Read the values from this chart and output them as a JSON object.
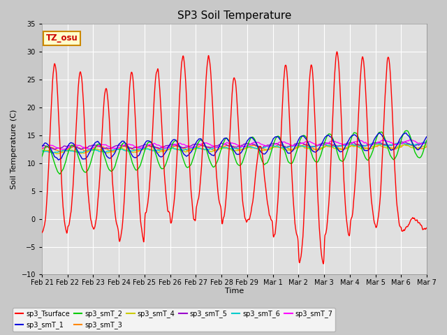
{
  "title": "SP3 Soil Temperature",
  "xlabel": "Time",
  "ylabel": "Soil Temperature (C)",
  "ylim": [
    -10,
    35
  ],
  "yticks": [
    -10,
    -5,
    0,
    5,
    10,
    15,
    20,
    25,
    30,
    35
  ],
  "fig_bg_color": "#c8c8c8",
  "plot_bg_color": "#e0e0e0",
  "tz_label": "TZ_osu",
  "legend_entries": [
    {
      "label": "sp3_Tsurface",
      "color": "#ff0000"
    },
    {
      "label": "sp3_smT_1",
      "color": "#0000dd"
    },
    {
      "label": "sp3_smT_2",
      "color": "#00cc00"
    },
    {
      "label": "sp3_smT_3",
      "color": "#ff8800"
    },
    {
      "label": "sp3_smT_4",
      "color": "#cccc00"
    },
    {
      "label": "sp3_smT_5",
      "color": "#9900cc"
    },
    {
      "label": "sp3_smT_6",
      "color": "#00cccc"
    },
    {
      "label": "sp3_smT_7",
      "color": "#ff00ff"
    }
  ],
  "n_days": 15,
  "date_labels": [
    "Feb 21",
    "Feb 22",
    "Feb 23",
    "Feb 24",
    "Feb 25",
    "Feb 26",
    "Feb 27",
    "Feb 28",
    "Feb 29",
    "Mar 1",
    "Mar 2",
    "Mar 3",
    "Mar 4",
    "Mar 5",
    "Mar 6",
    "Mar 7"
  ],
  "surface_peaks": [
    28,
    26.5,
    23.5,
    26.5,
    27,
    29.5,
    29,
    25.5,
    13,
    27.5,
    27.5,
    30,
    29,
    29,
    0
  ],
  "surface_troughs": [
    -4,
    -2.5,
    -3,
    -5.5,
    -0.5,
    -2,
    1,
    -2,
    -1,
    -5,
    -10,
    -4.5,
    -2,
    -3,
    -2
  ],
  "trough_offsets": [
    0.6,
    0.6,
    0.6,
    0.6,
    0.6,
    0.6,
    0.6,
    0.6,
    0.6,
    0.6,
    0.7,
    0.6,
    0.6,
    0.6,
    0.6
  ]
}
